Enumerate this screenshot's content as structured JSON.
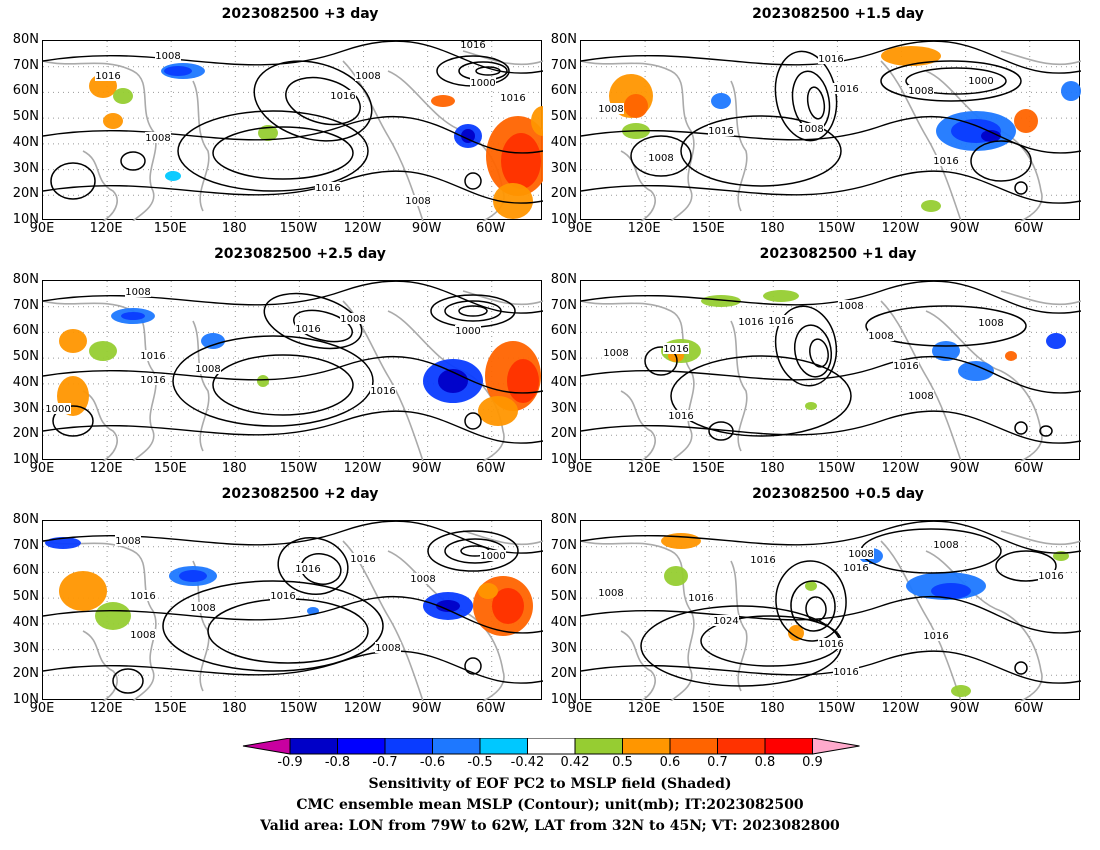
{
  "panels": [
    {
      "title": "2023082500 +3 day"
    },
    {
      "title": "2023082500 +1.5 day"
    },
    {
      "title": "2023082500 +2.5 day"
    },
    {
      "title": "2023082500 +1 day"
    },
    {
      "title": "2023082500 +2 day"
    },
    {
      "title": "2023082500 +0.5 day"
    }
  ],
  "axes": {
    "lat_labels": [
      "80N",
      "70N",
      "60N",
      "50N",
      "40N",
      "30N",
      "20N",
      "10N"
    ],
    "lon_labels": [
      "90E",
      "120E",
      "150E",
      "180",
      "150W",
      "120W",
      "90W",
      "60W"
    ]
  },
  "contour_labels": {
    "p0": [
      "1008",
      "1016",
      "1008",
      "1016",
      "1016",
      "1000",
      "1016",
      "1008",
      "1016",
      "1008"
    ],
    "p1": [
      "1016",
      "1016",
      "1000",
      "1008",
      "1008",
      "1008",
      "1016",
      "1008",
      "1016"
    ],
    "p2": [
      "1008",
      "1008",
      "1016",
      "1016",
      "1008",
      "1000",
      "1016",
      "1016",
      "1000"
    ],
    "p3": [
      "1008",
      "1016",
      "1016",
      "1016",
      "1008",
      "1016",
      "1008",
      "1008",
      "1016",
      "1008"
    ],
    "p4": [
      "1008",
      "1016",
      "1016",
      "1008",
      "1016",
      "1008",
      "1000",
      "1016",
      "1008",
      "1008"
    ],
    "p5": [
      "1016",
      "1008",
      "1016",
      "1008",
      "1016",
      "1016",
      "1024",
      "1016",
      "1016",
      "1008",
      "1016"
    ]
  },
  "colorbar": {
    "labels": [
      "-0.9",
      "-0.8",
      "-0.7",
      "-0.6",
      "-0.5",
      "-0.42",
      "0.42",
      "0.5",
      "0.6",
      "0.7",
      "0.8",
      "0.9"
    ],
    "colors": [
      "#0000c8",
      "#0000ff",
      "#0a3cff",
      "#1e78ff",
      "#00c8ff",
      "#ffffff",
      "#96cd32",
      "#ff9600",
      "#ff6400",
      "#ff3200",
      "#ff0000"
    ],
    "low_extend_color": "#c800a0",
    "high_extend_color": "#ffaacc"
  },
  "footer": {
    "line1": "Sensitivity of EOF PC2 to MSLP field (Shaded)",
    "line2": "CMC ensemble mean MSLP (Contour); unit(mb); IT:2023082500",
    "line3": "Valid area: LON from 79W to 62W, LAT from 32N to 45N; VT: 2023082800"
  }
}
